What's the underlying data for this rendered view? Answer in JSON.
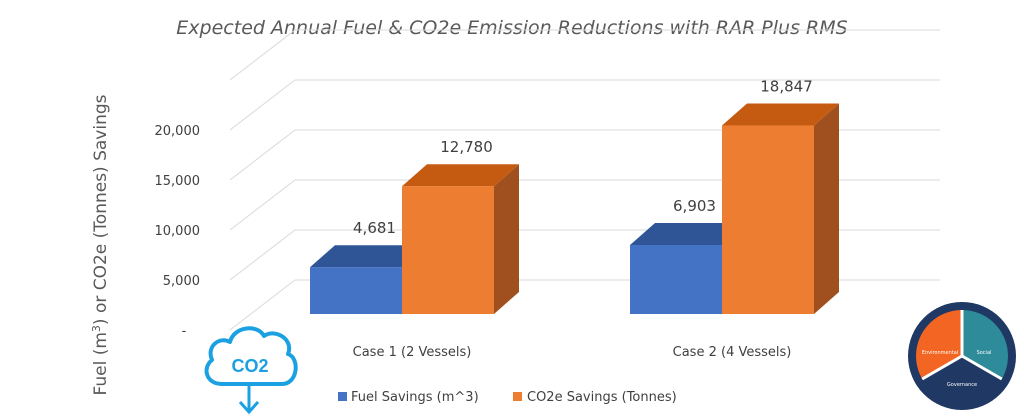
{
  "chart_data": {
    "type": "bar",
    "title": "Expected Annual Fuel & CO2e Emission Reductions with RAR Plus RMS",
    "ylabel": "Fuel (m³) or CO2e (Tonnes) Savings",
    "ylabel_parts": [
      "Fuel  (m",
      "3",
      ") or CO2e (Tonnes) Savings"
    ],
    "yticks": [
      "-",
      "5,000",
      "10,000",
      "15,000",
      "20,000"
    ],
    "ylim": [
      0,
      25000
    ],
    "categories": [
      "Case 1 (2 Vessels)",
      "Case 2 (4 Vessels)"
    ],
    "series": [
      {
        "name": "Fuel Savings (m^3)",
        "values": [
          4681,
          6903
        ],
        "labels": [
          "4,681",
          "6,903"
        ],
        "color": "#4472c4",
        "top_color": "#2f5597",
        "side_color": "#2e4a80"
      },
      {
        "name": "CO2e Savings (Tonnes)",
        "values": [
          12780,
          18847
        ],
        "labels": [
          "12,780",
          "18,847"
        ],
        "color": "#ed7d31",
        "top_color": "#c55a11",
        "side_color": "#a0501e"
      }
    ],
    "grid": true,
    "legend": "bottom"
  },
  "logos": {
    "co2_icon": "CO2",
    "esg_labels": [
      "Environmental",
      "Social",
      "Governance"
    ],
    "esg_colors": [
      "#f26522",
      "#2e8b9a",
      "#1f3864"
    ]
  }
}
